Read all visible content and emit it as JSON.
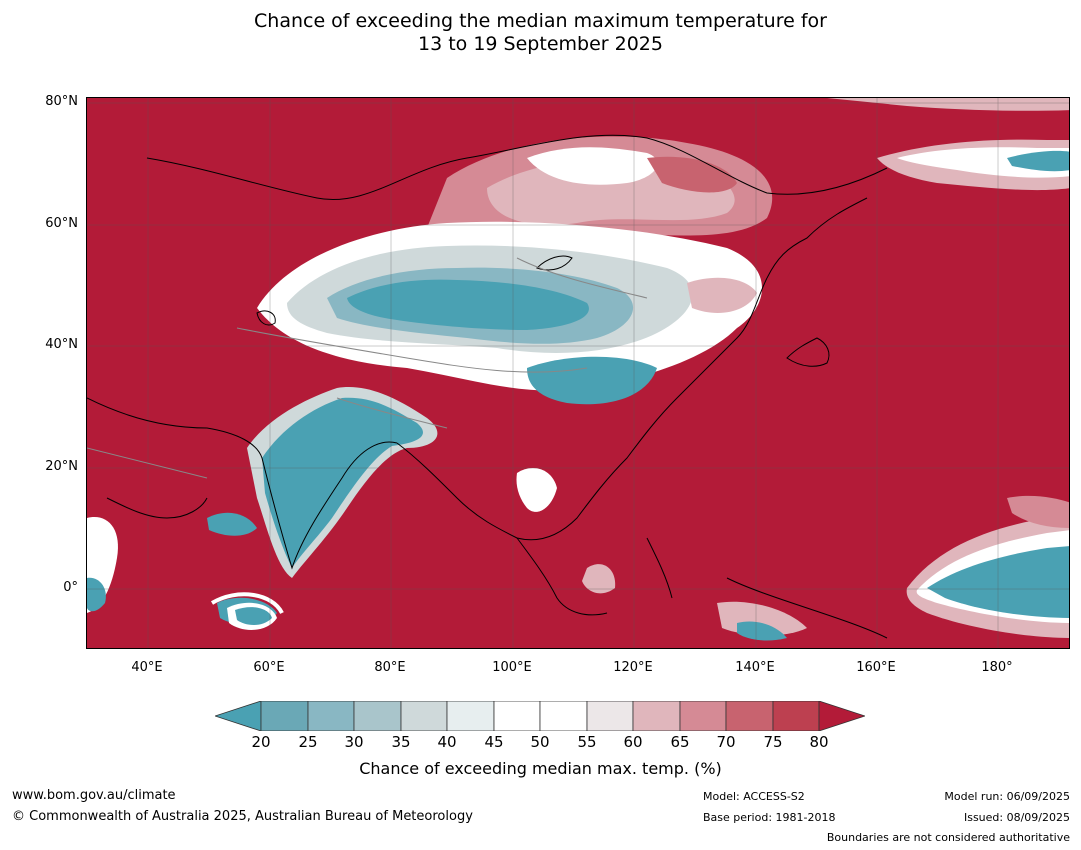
{
  "title_line1": "Chance of exceeding the median maximum temperature for",
  "title_line2": "13 to 19 September 2025",
  "lat_ticks": [
    "80°N",
    "60°N",
    "40°N",
    "20°N",
    "0°"
  ],
  "lon_ticks": [
    "40°E",
    "60°E",
    "80°E",
    "100°E",
    "120°E",
    "140°E",
    "160°E",
    "180°"
  ],
  "colorbar": {
    "title": "Chance of exceeding median max. temp. (%)",
    "labels": [
      "20",
      "25",
      "30",
      "35",
      "40",
      "45",
      "50",
      "55",
      "60",
      "65",
      "70",
      "75",
      "80"
    ],
    "colors": {
      "below_20": "#4aa1b3",
      "20_25": "#6aa8b6",
      "25_30": "#89b7c3",
      "30_35": "#a9c5cb",
      "35_40": "#cfd9da",
      "40_45": "#e7eeef",
      "45_50": "#ffffff",
      "50_55": "#ffffff",
      "55_60": "#ece7e8",
      "60_65": "#e0b6bc",
      "65_70": "#d58a95",
      "70_75": "#c8636f",
      "75_80": "#bd4050",
      "above_80": "#b31b38"
    }
  },
  "footer": {
    "website": "www.bom.gov.au/climate",
    "copyright": "© Commonwealth of Australia 2025, Australian Bureau of Meteorology",
    "model": "Model: ACCESS-S2",
    "base_period": "Base period: 1981-2018",
    "model_run": "Model run: 06/09/2025",
    "issued": "Issued: 08/09/2025",
    "disclaimer": "Boundaries are not considered authoritative"
  }
}
